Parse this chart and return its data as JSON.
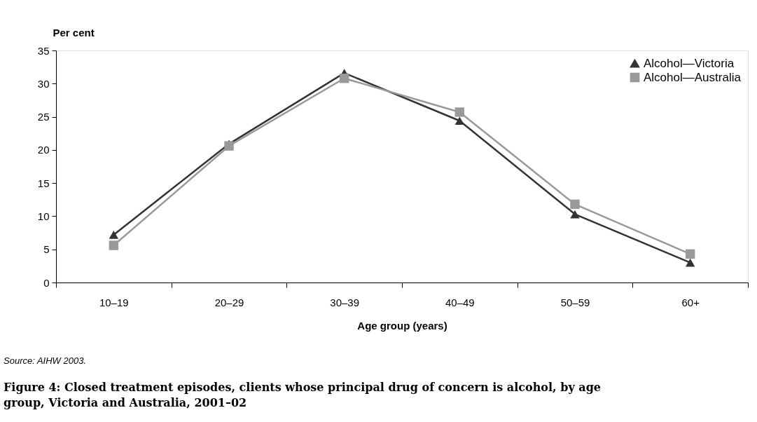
{
  "chart_data": {
    "type": "line",
    "title": "Figure 4: Closed treatment episodes, clients whose principal drug of concern is alcohol, by age group, Victoria and Australia, 2001–02",
    "xlabel": "Age group (years)",
    "ylabel": "Per cent",
    "categories": [
      "10–19",
      "20–29",
      "30–39",
      "40–49",
      "50–59",
      "60+"
    ],
    "series": [
      {
        "name": "Alcohol—Victoria",
        "color": "#333333",
        "marker": "triangle",
        "values": [
          7.2,
          20.9,
          31.6,
          24.4,
          10.3,
          3.0
        ]
      },
      {
        "name": "Alcohol—Australia",
        "color": "#999999",
        "marker": "square",
        "values": [
          5.6,
          20.6,
          30.8,
          25.7,
          11.8,
          4.3
        ]
      }
    ],
    "ylim": [
      0,
      35
    ],
    "yticks": [
      0,
      5,
      10,
      15,
      20,
      25,
      30,
      35
    ],
    "grid": false,
    "legend": "top right",
    "line_style": "solid",
    "annotations": [
      "Source: AIHW 2003."
    ]
  }
}
